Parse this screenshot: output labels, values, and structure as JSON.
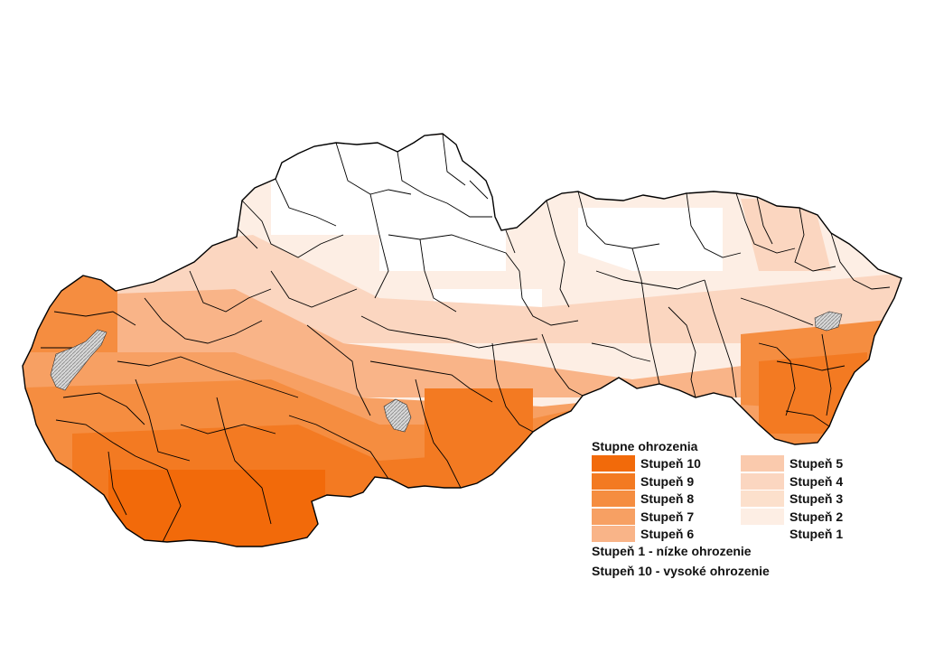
{
  "legend": {
    "title": "Stupne ohrozenia",
    "items": [
      {
        "label": "Stupeň 10",
        "color": "#f26a0a"
      },
      {
        "label": "Stupeň 9",
        "color": "#f37a22"
      },
      {
        "label": "Stupeň 8",
        "color": "#f58d40"
      },
      {
        "label": "Stupeň 7",
        "color": "#f7a063"
      },
      {
        "label": "Stupeň 6",
        "color": "#f9b488"
      },
      {
        "label": "Stupeň 5",
        "color": "#facaad"
      },
      {
        "label": "Stupeň 4",
        "color": "#fbd6c0"
      },
      {
        "label": "Stupeň 3",
        "color": "#fce0cc"
      },
      {
        "label": "Stupeň 2",
        "color": "#fdeee4"
      },
      {
        "label": "Stupeň 1",
        "color": "#ffffff"
      }
    ],
    "note_low": "Stupeň 1 - nízke ohrozenie",
    "note_high": "Stupeň 10 - vysoké ohrozenie"
  },
  "map": {
    "no_data_color": "#d8d8d8",
    "border_color": "#000000"
  }
}
